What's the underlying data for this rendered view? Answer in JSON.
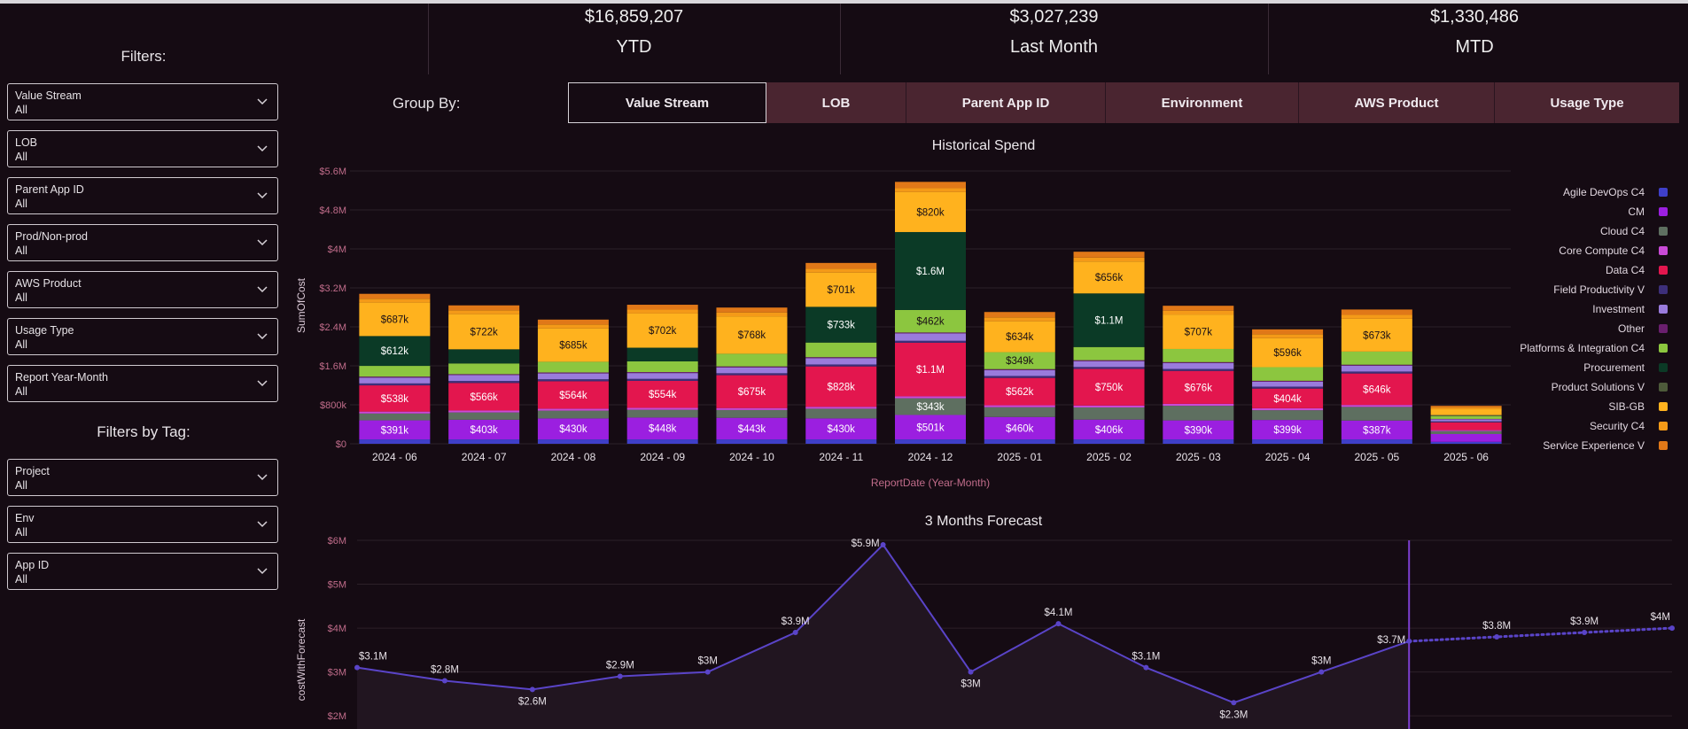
{
  "kpis": [
    {
      "value": "$16,859,207",
      "label": "YTD"
    },
    {
      "value": "$3,027,239",
      "label": "Last Month"
    },
    {
      "value": "$1,330,486",
      "label": "MTD"
    }
  ],
  "filters": {
    "title": "Filters:",
    "items": [
      {
        "label": "Value Stream",
        "value": "All"
      },
      {
        "label": "LOB",
        "value": "All"
      },
      {
        "label": "Parent App ID",
        "value": "All"
      },
      {
        "label": "Prod/Non-prod",
        "value": "All"
      },
      {
        "label": "AWS Product",
        "value": "All"
      },
      {
        "label": "Usage Type",
        "value": "All"
      },
      {
        "label": "Report Year-Month",
        "value": "All"
      }
    ],
    "tag_title": "Filters by Tag:",
    "tag_items": [
      {
        "label": "Project",
        "value": "All"
      },
      {
        "label": "Env",
        "value": "All"
      },
      {
        "label": "App ID",
        "value": "All"
      }
    ]
  },
  "group_by": {
    "label": "Group By:",
    "tabs": [
      "Value Stream",
      "LOB",
      "Parent App ID",
      "Environment",
      "AWS Product",
      "Usage Type"
    ],
    "active": "Value Stream"
  },
  "chart_data": [
    {
      "type": "bar",
      "stacked": true,
      "title": "Historical Spend",
      "xlabel": "ReportDate (Year-Month)",
      "ylabel": "SumOfCost",
      "ylim": [
        0,
        5600000
      ],
      "yticks": [
        {
          "v": 0,
          "label": "$0"
        },
        {
          "v": 800000,
          "label": "$800k"
        },
        {
          "v": 1600000,
          "label": "$1.6M"
        },
        {
          "v": 2400000,
          "label": "$2.4M"
        },
        {
          "v": 3200000,
          "label": "$3.2M"
        },
        {
          "v": 4000000,
          "label": "$4M"
        },
        {
          "v": 4800000,
          "label": "$4.8M"
        },
        {
          "v": 5600000,
          "label": "$5.6M"
        }
      ],
      "categories": [
        "2024 - 06",
        "2024 - 07",
        "2024 - 08",
        "2024 - 09",
        "2024 - 10",
        "2024 - 11",
        "2024 - 12",
        "2025 - 01",
        "2025 - 02",
        "2025 - 03",
        "2025 - 04",
        "2025 - 05",
        "2025 - 06"
      ],
      "legend_position": "right",
      "series": [
        {
          "name": "Agile DevOps C4",
          "color": "#3f3fc9",
          "values": [
            90000,
            90000,
            90000,
            90000,
            90000,
            90000,
            90000,
            90000,
            90000,
            90000,
            90000,
            90000,
            40000
          ]
        },
        {
          "name": "CM",
          "color": "#9b1fe0",
          "values": [
            391000,
            403000,
            430000,
            448000,
            443000,
            430000,
            501000,
            460000,
            406000,
            390000,
            399000,
            387000,
            160000
          ]
        },
        {
          "name": "Cloud C4",
          "color": "#5e6f60",
          "values": [
            140000,
            150000,
            160000,
            160000,
            160000,
            200000,
            343000,
            200000,
            250000,
            300000,
            200000,
            280000,
            60000
          ]
        },
        {
          "name": "Core Compute C4",
          "color": "#c94ad6",
          "values": [
            40000,
            40000,
            40000,
            40000,
            40000,
            40000,
            40000,
            40000,
            40000,
            40000,
            40000,
            40000,
            20000
          ]
        },
        {
          "name": "Data C4",
          "color": "#e3164e",
          "values": [
            538000,
            566000,
            564000,
            554000,
            675000,
            828000,
            1100000,
            562000,
            750000,
            676000,
            404000,
            646000,
            160000
          ]
        },
        {
          "name": "Field Productivity V",
          "color": "#3d2f7a",
          "values": [
            40000,
            40000,
            40000,
            40000,
            40000,
            40000,
            40000,
            40000,
            40000,
            40000,
            40000,
            40000,
            20000
          ]
        },
        {
          "name": "Investment",
          "color": "#9a7bdc",
          "values": [
            120000,
            120000,
            120000,
            120000,
            120000,
            130000,
            150000,
            120000,
            120000,
            120000,
            100000,
            120000,
            40000
          ]
        },
        {
          "name": "Other",
          "color": "#6a1f6e",
          "values": [
            20000,
            20000,
            20000,
            20000,
            20000,
            20000,
            20000,
            20000,
            20000,
            20000,
            20000,
            20000,
            10000
          ]
        },
        {
          "name": "Platforms & Integration C4",
          "color": "#8cc63f",
          "values": [
            220000,
            220000,
            220000,
            220000,
            260000,
            300000,
            462000,
            349000,
            270000,
            270000,
            280000,
            270000,
            60000
          ]
        },
        {
          "name": "Procurement",
          "color": "#0b3a26",
          "values": [
            612000,
            290000,
            0,
            280000,
            0,
            733000,
            1600000,
            0,
            1100000,
            0,
            0,
            0,
            0
          ]
        },
        {
          "name": "Product Solutions V",
          "color": "#4d5a3a",
          "values": [
            0,
            0,
            0,
            0,
            0,
            0,
            0,
            0,
            0,
            0,
            0,
            0,
            20000
          ]
        },
        {
          "name": "SIB-GB",
          "color": "#ffb21e",
          "values": [
            687000,
            722000,
            685000,
            702000,
            768000,
            701000,
            820000,
            634000,
            656000,
            707000,
            596000,
            673000,
            120000
          ]
        },
        {
          "name": "Security C4",
          "color": "#f49a18",
          "values": [
            80000,
            80000,
            80000,
            80000,
            80000,
            80000,
            80000,
            80000,
            80000,
            80000,
            80000,
            80000,
            40000
          ]
        },
        {
          "name": "Service Experience V",
          "color": "#e07818",
          "values": [
            100000,
            100000,
            100000,
            100000,
            100000,
            120000,
            130000,
            110000,
            120000,
            100000,
            100000,
            110000,
            30000
          ]
        }
      ],
      "data_labels": [
        {
          "cat": 0,
          "series": "CM",
          "text": "$391k"
        },
        {
          "cat": 0,
          "series": "Data C4",
          "text": "$538k"
        },
        {
          "cat": 0,
          "series": "Procurement",
          "text": "$612k"
        },
        {
          "cat": 0,
          "series": "SIB-GB",
          "text": "$687k"
        },
        {
          "cat": 1,
          "series": "CM",
          "text": "$403k"
        },
        {
          "cat": 1,
          "series": "Data C4",
          "text": "$566k"
        },
        {
          "cat": 1,
          "series": "SIB-GB",
          "text": "$722k"
        },
        {
          "cat": 2,
          "series": "CM",
          "text": "$430k"
        },
        {
          "cat": 2,
          "series": "Data C4",
          "text": "$564k"
        },
        {
          "cat": 2,
          "series": "SIB-GB",
          "text": "$685k"
        },
        {
          "cat": 3,
          "series": "CM",
          "text": "$448k"
        },
        {
          "cat": 3,
          "series": "Data C4",
          "text": "$554k"
        },
        {
          "cat": 3,
          "series": "SIB-GB",
          "text": "$702k"
        },
        {
          "cat": 4,
          "series": "CM",
          "text": "$443k"
        },
        {
          "cat": 4,
          "series": "Data C4",
          "text": "$675k"
        },
        {
          "cat": 4,
          "series": "SIB-GB",
          "text": "$768k"
        },
        {
          "cat": 5,
          "series": "CM",
          "text": "$430k"
        },
        {
          "cat": 5,
          "series": "Data C4",
          "text": "$828k"
        },
        {
          "cat": 5,
          "series": "Procurement",
          "text": "$733k"
        },
        {
          "cat": 5,
          "series": "SIB-GB",
          "text": "$701k"
        },
        {
          "cat": 6,
          "series": "CM",
          "text": "$501k"
        },
        {
          "cat": 6,
          "series": "Cloud C4",
          "text": "$343k"
        },
        {
          "cat": 6,
          "series": "Data C4",
          "text": "$1.1M"
        },
        {
          "cat": 6,
          "series": "Platforms & Integration C4",
          "text": "$462k"
        },
        {
          "cat": 6,
          "series": "Procurement",
          "text": "$1.6M"
        },
        {
          "cat": 6,
          "series": "SIB-GB",
          "text": "$820k"
        },
        {
          "cat": 7,
          "series": "CM",
          "text": "$460k"
        },
        {
          "cat": 7,
          "series": "Data C4",
          "text": "$562k"
        },
        {
          "cat": 7,
          "series": "Platforms & Integration C4",
          "text": "$349k"
        },
        {
          "cat": 7,
          "series": "SIB-GB",
          "text": "$634k"
        },
        {
          "cat": 8,
          "series": "CM",
          "text": "$406k"
        },
        {
          "cat": 8,
          "series": "Data C4",
          "text": "$750k"
        },
        {
          "cat": 8,
          "series": "Procurement",
          "text": "$1.1M"
        },
        {
          "cat": 8,
          "series": "SIB-GB",
          "text": "$656k"
        },
        {
          "cat": 9,
          "series": "CM",
          "text": "$390k"
        },
        {
          "cat": 9,
          "series": "Data C4",
          "text": "$676k"
        },
        {
          "cat": 9,
          "series": "SIB-GB",
          "text": "$707k"
        },
        {
          "cat": 10,
          "series": "CM",
          "text": "$399k"
        },
        {
          "cat": 10,
          "series": "Data C4",
          "text": "$404k"
        },
        {
          "cat": 10,
          "series": "SIB-GB",
          "text": "$596k"
        },
        {
          "cat": 11,
          "series": "CM",
          "text": "$387k"
        },
        {
          "cat": 11,
          "series": "Data C4",
          "text": "$646k"
        },
        {
          "cat": 11,
          "series": "SIB-GB",
          "text": "$673k"
        }
      ]
    },
    {
      "type": "line",
      "title": "3 Months Forecast",
      "ylabel": "costWithForecast",
      "ylim": [
        1700000,
        6000000
      ],
      "yticks": [
        {
          "v": 2000000,
          "label": "$2M"
        },
        {
          "v": 3000000,
          "label": "$3M"
        },
        {
          "v": 4000000,
          "label": "$4M"
        },
        {
          "v": 5000000,
          "label": "$5M"
        },
        {
          "v": 6000000,
          "label": "$6M"
        }
      ],
      "x_count": 16,
      "forecast_start_index": 12,
      "points": [
        {
          "y": 3100000,
          "label": "$3.1M",
          "pos": "above"
        },
        {
          "y": 2800000,
          "label": "$2.8M",
          "pos": "above"
        },
        {
          "y": 2600000,
          "label": "$2.6M",
          "pos": "below"
        },
        {
          "y": 2900000,
          "label": "$2.9M",
          "pos": "above"
        },
        {
          "y": 3000000,
          "label": "$3M",
          "pos": "above"
        },
        {
          "y": 3900000,
          "label": "$3.9M",
          "pos": "above"
        },
        {
          "y": 5900000,
          "label": "$5.9M",
          "pos": "left"
        },
        {
          "y": 3000000,
          "label": "$3M",
          "pos": "below"
        },
        {
          "y": 4100000,
          "label": "$4.1M",
          "pos": "above"
        },
        {
          "y": 3100000,
          "label": "$3.1M",
          "pos": "above"
        },
        {
          "y": 2300000,
          "label": "$2.3M",
          "pos": "below"
        },
        {
          "y": 3000000,
          "label": "$3M",
          "pos": "above"
        },
        {
          "y": 3700000,
          "label": "$3.7M",
          "pos": "left"
        },
        {
          "y": 3800000,
          "label": "$3.8M",
          "pos": "above"
        },
        {
          "y": 3900000,
          "label": "$3.9M",
          "pos": "above"
        },
        {
          "y": 4000000,
          "label": "$4M",
          "pos": "above"
        }
      ]
    }
  ]
}
